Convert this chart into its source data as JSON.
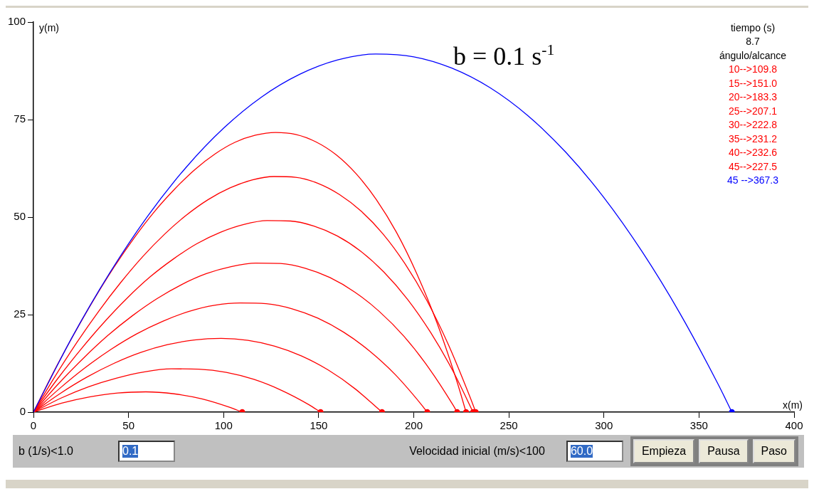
{
  "chart_data": {
    "type": "line",
    "xlabel": "x(m)",
    "ylabel": "y(m)",
    "xlim": [
      0,
      400
    ],
    "xticks": [
      0,
      50,
      100,
      150,
      200,
      250,
      300,
      350,
      400
    ],
    "ylim": [
      0,
      100
    ],
    "yticks": [
      0,
      25,
      50,
      75,
      100
    ],
    "grid": false,
    "legend": false,
    "marker": "none",
    "line_style": "solid",
    "annotations": [
      "b = 0.1 s$^{-1}$",
      "tiempo (s)",
      "8.7",
      "ángulo/alcance",
      "10-->109.8",
      "15-->151.0",
      "20-->183.3",
      "25-->207.1",
      "30-->222.8",
      "35-->231.2",
      "40-->232.6",
      "45-->227.5",
      "45 -->367.3",
      "b (1/s)<1.0",
      "0.1",
      "Velocidad inicial (m/s)<100",
      "60.0",
      "Empieza",
      "Pausa",
      "Paso"
    ],
    "series": [
      {
        "color": "#ff0000",
        "x": [
          0,
          14.8,
          29.5,
          44.3,
          59.1,
          73.9,
          88.6,
          103.4,
          109.8
        ],
        "values": [
          0,
          2.3,
          3.9,
          4.9,
          5.2,
          4.7,
          3.4,
          1.2,
          0
        ]
      },
      {
        "color": "#ff0000",
        "x": [
          0,
          14.5,
          29.0,
          43.5,
          58.0,
          72.5,
          86.9,
          101.4,
          115.9,
          130.4,
          144.9,
          151.0
        ],
        "values": [
          0,
          3.6,
          6.5,
          8.7,
          10.3,
          11.1,
          11.0,
          10.2,
          8.4,
          5.6,
          1.9,
          0
        ]
      },
      {
        "color": "#ff0000",
        "x": [
          0,
          14.1,
          28.2,
          42.3,
          56.4,
          70.5,
          84.6,
          98.7,
          112.8,
          126.9,
          141.0,
          155.0,
          169.1,
          183.3
        ],
        "values": [
          0,
          4.8,
          9.0,
          12.5,
          15.3,
          17.3,
          18.5,
          18.9,
          18.4,
          16.9,
          14.4,
          10.8,
          6.0,
          0
        ]
      },
      {
        "color": "#ff0000",
        "x": [
          0,
          13.6,
          27.2,
          40.8,
          54.4,
          68.0,
          81.6,
          95.2,
          108.8,
          122.4,
          136.0,
          149.5,
          163.1,
          176.7,
          190.3,
          203.9,
          207.1
        ],
        "values": [
          0,
          6.0,
          11.4,
          16.1,
          20.1,
          23.3,
          25.8,
          27.4,
          28.0,
          27.8,
          26.5,
          24.1,
          20.5,
          15.7,
          9.6,
          2.0,
          0
        ]
      },
      {
        "color": "#ff0000",
        "x": [
          0,
          13.0,
          26.0,
          39.0,
          52.0,
          65.0,
          77.9,
          90.9,
          103.9,
          116.9,
          129.9,
          142.9,
          155.9,
          168.9,
          181.9,
          194.9,
          207.8,
          220.8,
          222.8
        ],
        "values": [
          0,
          7.2,
          13.7,
          19.6,
          24.7,
          29.1,
          32.7,
          35.5,
          37.3,
          38.2,
          38.1,
          36.9,
          34.5,
          30.8,
          25.8,
          19.4,
          11.4,
          1.7,
          0
        ]
      },
      {
        "color": "#ff0000",
        "x": [
          0,
          12.3,
          24.6,
          36.9,
          49.2,
          61.4,
          73.7,
          86.0,
          98.3,
          110.6,
          122.9,
          135.2,
          147.5,
          159.7,
          172.0,
          184.3,
          196.6,
          208.9,
          221.2,
          231.2
        ],
        "values": [
          0,
          8.3,
          15.9,
          22.9,
          29.2,
          34.7,
          39.3,
          43.2,
          46.1,
          48.1,
          49.1,
          49.0,
          47.7,
          45.2,
          41.3,
          35.9,
          29.0,
          20.4,
          10.0,
          0
        ]
      },
      {
        "color": "#ff0000",
        "x": [
          0,
          11.5,
          23.0,
          34.5,
          46.0,
          57.5,
          68.9,
          80.4,
          91.9,
          103.4,
          114.9,
          126.4,
          137.9,
          149.4,
          160.9,
          172.4,
          183.8,
          195.3,
          206.8,
          218.3,
          229.8,
          232.6
        ],
        "values": [
          0,
          9.3,
          18.0,
          26.0,
          33.3,
          39.9,
          45.6,
          50.5,
          54.5,
          57.5,
          59.5,
          60.4,
          60.2,
          58.7,
          55.8,
          51.5,
          45.7,
          38.1,
          28.7,
          17.2,
          3.6,
          0
        ]
      },
      {
        "color": "#ff0000",
        "x": [
          0,
          10.6,
          21.2,
          31.8,
          42.4,
          53.0,
          63.6,
          74.3,
          84.9,
          95.5,
          106.1,
          116.7,
          127.3,
          137.9,
          148.5,
          159.1,
          169.7,
          180.3,
          190.9,
          201.5,
          212.2,
          222.8,
          227.5
        ],
        "values": [
          0,
          10.3,
          19.9,
          28.9,
          37.2,
          44.7,
          51.4,
          57.2,
          62.2,
          66.2,
          69.2,
          71.0,
          71.7,
          71.2,
          69.3,
          66.0,
          61.1,
          54.5,
          46.1,
          35.6,
          22.9,
          7.7,
          0
        ]
      },
      {
        "color": "#0000ff",
        "x": [
          0,
          20,
          40,
          60,
          80,
          100,
          120,
          140,
          160,
          180,
          200,
          220,
          240,
          260,
          280,
          300,
          320,
          340,
          360,
          367.3
        ],
        "values": [
          0,
          18.9,
          35.6,
          50.2,
          62.6,
          72.8,
          80.8,
          86.6,
          90.3,
          91.8,
          91.1,
          88.2,
          83.2,
          76.0,
          66.6,
          55.0,
          41.2,
          25.3,
          7.2,
          0
        ]
      },
      {
        "type": "scatter",
        "marker": "circle",
        "x": [
          109.8,
          151.0,
          183.3,
          207.1,
          222.8,
          231.2,
          232.6,
          227.5,
          367.3
        ],
        "values": [
          0,
          0,
          0,
          0,
          0,
          0,
          0,
          0,
          0
        ],
        "colors": [
          "#ff0000",
          "#ff0000",
          "#ff0000",
          "#ff0000",
          "#ff0000",
          "#ff0000",
          "#ff0000",
          "#ff0000",
          "#0000ff"
        ]
      }
    ]
  }
}
